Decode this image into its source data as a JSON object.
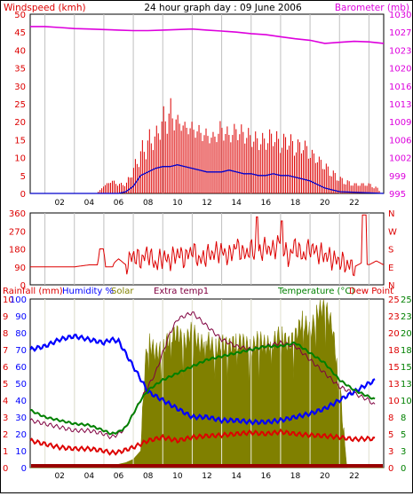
{
  "header": {
    "left_label": "Windspeed (kmh)",
    "title": "24 hour graph day : 09 June 2006",
    "right_label": "Barometer (mb)"
  },
  "middle_panel": {
    "direction_labels": [
      "N",
      "W",
      "S",
      "E",
      "N"
    ]
  },
  "bottom_header": {
    "rainfall": "Rainfall (mm)",
    "humidity": "Humidity %",
    "solar": "Solar",
    "extra": "Extra temp1",
    "temperature": "Temperature (°C)",
    "dewpoint": "Dew Point"
  },
  "colors": {
    "wind": "#dd0000",
    "wind_avg": "#0000cc",
    "barometer": "#dd00dd",
    "direction": "#dd0000",
    "solar": "#808000",
    "humidity": "#0000ff",
    "temperature": "#008000",
    "dewpoint": "#dd0000",
    "extra_temp": "#800040",
    "rainfall": "#990000",
    "grid": "#c0c0c0"
  },
  "chart_data": [
    {
      "type": "line",
      "title": "24 hour graph day : 09 June 2006",
      "x_ticks": [
        "02",
        "04",
        "06",
        "08",
        "10",
        "12",
        "14",
        "16",
        "18",
        "20",
        "22"
      ],
      "xlim": [
        0,
        24
      ],
      "left_axis": {
        "label": "Windspeed (kmh)",
        "ylim": [
          0,
          50
        ],
        "ticks": [
          0,
          5,
          10,
          15,
          20,
          25,
          30,
          35,
          40,
          45,
          50
        ]
      },
      "right_axis": {
        "label": "Barometer (mb)",
        "ylim": [
          995,
          1030
        ],
        "ticks": [
          995,
          999,
          1002,
          1006,
          1009,
          1013,
          1016,
          1020,
          1023,
          1027,
          1030
        ]
      },
      "series": [
        {
          "name": "Windspeed (kmh)",
          "axis": "left",
          "style": "gust-bars",
          "x": [
            0,
            4.5,
            5.0,
            5.5,
            6.0,
            6.5,
            7.0,
            7.5,
            8.0,
            8.5,
            9.0,
            9.5,
            10.0,
            10.5,
            11.0,
            11.5,
            12.0,
            12.5,
            13.0,
            13.5,
            14.0,
            14.5,
            15.0,
            15.5,
            16.0,
            16.5,
            17.0,
            17.5,
            18.0,
            18.5,
            19.0,
            19.5,
            20.0,
            20.5,
            21.0,
            21.5,
            22.0,
            22.5,
            23.0,
            23.5,
            24
          ],
          "y": [
            0,
            0,
            2,
            3,
            2,
            2,
            5,
            8,
            10,
            13,
            16,
            17,
            18,
            17,
            16,
            15,
            14,
            14,
            15,
            14,
            15,
            14,
            13,
            12,
            12,
            13,
            11,
            12,
            10,
            11,
            9,
            8,
            6,
            4,
            3,
            2,
            2,
            2,
            2,
            1,
            0
          ],
          "gust_max": [
            0,
            0,
            2,
            4,
            3,
            3,
            8,
            14,
            18,
            18,
            24,
            27,
            22,
            20,
            20,
            19,
            18,
            17,
            21,
            18,
            20,
            19,
            18,
            17,
            17,
            19,
            16,
            18,
            15,
            16,
            13,
            11,
            9,
            7,
            5,
            4,
            3,
            3,
            3,
            2,
            0
          ]
        },
        {
          "name": "Average windspeed",
          "axis": "left",
          "x": [
            0,
            5.5,
            6.0,
            6.5,
            7.0,
            7.5,
            8.0,
            8.5,
            9.0,
            9.5,
            10.0,
            10.5,
            11.0,
            11.5,
            12.0,
            12.5,
            13.0,
            13.5,
            14.0,
            14.5,
            15.0,
            15.5,
            16.0,
            16.5,
            17.0,
            17.5,
            18.0,
            18.5,
            19.0,
            19.5,
            20.0,
            20.5,
            21.0,
            24
          ],
          "y": [
            0,
            0,
            0,
            0.5,
            2,
            5,
            6,
            7,
            7.5,
            7.5,
            8,
            7.5,
            7,
            6.5,
            6,
            6,
            6,
            6.5,
            6,
            5.5,
            5.5,
            5,
            5,
            5.5,
            5,
            5,
            4.5,
            4,
            3.5,
            2.5,
            1.5,
            1,
            0.5,
            0
          ]
        },
        {
          "name": "Barometer (mb)",
          "axis": "right",
          "x": [
            0,
            1,
            2,
            3,
            4,
            5,
            6,
            7,
            8,
            9,
            10,
            11,
            12,
            13,
            14,
            15,
            16,
            17,
            18,
            19,
            20,
            21,
            22,
            23,
            24
          ],
          "y": [
            1027.6,
            1027.6,
            1027.4,
            1027.2,
            1027.1,
            1027.0,
            1026.9,
            1026.8,
            1026.8,
            1026.9,
            1027.0,
            1027.1,
            1026.9,
            1026.7,
            1026.5,
            1026.2,
            1026.0,
            1025.6,
            1025.2,
            1024.9,
            1024.3,
            1024.5,
            1024.7,
            1024.6,
            1024.3
          ]
        }
      ]
    },
    {
      "type": "line",
      "x_ticks": [],
      "xlim": [
        0,
        24
      ],
      "left_axis": {
        "ylim": [
          0,
          360
        ],
        "ticks": [
          0,
          90,
          180,
          270,
          360
        ]
      },
      "right_axis": {
        "ticks": [
          "N",
          "W",
          "S",
          "E",
          "N"
        ]
      },
      "series": [
        {
          "name": "Wind direction",
          "x": [
            0,
            2,
            3,
            4,
            4.6,
            4.7,
            5.0,
            5.1,
            5.6,
            5.7,
            6.0,
            6.5,
            7.0,
            7.5,
            8.0,
            8.5,
            9.0,
            9.5,
            10.0,
            10.5,
            11.0,
            11.5,
            12.0,
            12.5,
            13.0,
            13.5,
            14.0,
            14.5,
            15.0,
            15.5,
            16.0,
            16.5,
            17.0,
            17.5,
            18.0,
            18.5,
            19.0,
            19.5,
            20.0,
            20.5,
            21.0,
            21.5,
            22.0,
            22.5,
            23.0,
            23.5,
            24
          ],
          "y": [
            90,
            90,
            90,
            100,
            100,
            180,
            180,
            90,
            90,
            110,
            130,
            100,
            150,
            120,
            160,
            100,
            140,
            120,
            160,
            130,
            180,
            120,
            150,
            160,
            170,
            140,
            200,
            150,
            180,
            160,
            190,
            170,
            230,
            130,
            200,
            140,
            190,
            160,
            150,
            130,
            120,
            100,
            90,
            110,
            100,
            120,
            100
          ]
        }
      ]
    },
    {
      "type": "line",
      "x_ticks": [
        "02",
        "04",
        "06",
        "08",
        "10",
        "12",
        "14",
        "16",
        "18",
        "20",
        "22"
      ],
      "xlim": [
        0,
        24
      ],
      "left_axes": [
        {
          "label": "Rainfall (mm)",
          "ylim": [
            0,
            10
          ],
          "ticks": [
            0,
            1,
            2,
            3,
            4,
            5,
            6,
            7,
            8,
            9,
            10
          ]
        },
        {
          "label": "Humidity %",
          "ylim": [
            0,
            100
          ],
          "ticks": [
            0,
            10,
            20,
            30,
            40,
            50,
            60,
            70,
            80,
            90,
            100
          ]
        }
      ],
      "right_axes": [
        {
          "label": "Temperature (°C)",
          "ylim": [
            0,
            25
          ],
          "ticks": [
            0,
            3,
            5,
            8,
            10,
            13,
            15,
            18,
            20,
            23,
            25
          ]
        },
        {
          "label": "Dew Point",
          "ylim": [
            0,
            25
          ],
          "ticks": [
            0,
            3,
            5,
            8,
            10,
            13,
            15,
            18,
            20,
            23,
            25
          ]
        }
      ],
      "series": [
        {
          "name": "Solar",
          "style": "area",
          "axis": "humidity",
          "x": [
            0,
            5.5,
            6.0,
            6.5,
            7.0,
            7.5,
            7.8,
            8.0,
            8.5,
            9.0,
            9.5,
            10.0,
            10.5,
            11.0,
            11.5,
            12.0,
            12.5,
            13.0,
            13.5,
            14.0,
            14.5,
            15.0,
            15.5,
            16.0,
            16.5,
            17.0,
            17.5,
            18.0,
            18.5,
            19.0,
            19.5,
            20.0,
            20.5,
            21.0,
            21.5,
            24
          ],
          "y": [
            0,
            0,
            2,
            3,
            5,
            10,
            60,
            75,
            68,
            70,
            78,
            80,
            74,
            82,
            72,
            76,
            70,
            74,
            72,
            75,
            74,
            70,
            76,
            72,
            74,
            80,
            73,
            78,
            88,
            80,
            92,
            96,
            84,
            50,
            0,
            0
          ]
        },
        {
          "name": "Humidity %",
          "axis": "humidity",
          "x": [
            0,
            1,
            2,
            3,
            4,
            5,
            5.5,
            6,
            7,
            8,
            9,
            10,
            11,
            12,
            13,
            14,
            15,
            16,
            17,
            18,
            19,
            20,
            21,
            22,
            23,
            23.5
          ],
          "y": [
            70,
            72,
            76,
            78,
            76,
            74,
            76,
            75,
            60,
            45,
            40,
            35,
            30,
            30,
            28,
            28,
            27,
            27,
            28,
            30,
            32,
            35,
            40,
            45,
            50,
            52
          ]
        },
        {
          "name": "Temperature (°C)",
          "axis": "temperature",
          "x": [
            0,
            1,
            2,
            3,
            4,
            5,
            5.5,
            6,
            6.5,
            7,
            7.5,
            8,
            9,
            10,
            11,
            12,
            13,
            14,
            15,
            16,
            17,
            18,
            19,
            20,
            21,
            22,
            23,
            23.5
          ],
          "y": [
            8.5,
            7.5,
            7,
            6.5,
            6.3,
            5.5,
            5,
            5.3,
            6,
            8,
            10,
            11.5,
            13,
            14,
            15,
            16,
            16.5,
            17,
            17.5,
            18,
            18,
            18.5,
            17,
            15.5,
            13,
            11.5,
            10.5,
            10
          ]
        },
        {
          "name": "Dew Point",
          "axis": "temperature",
          "x": [
            0,
            1,
            2,
            3,
            4,
            5,
            5.5,
            6,
            7,
            8,
            9,
            10,
            11,
            12,
            13,
            14,
            15,
            16,
            17,
            18,
            19,
            20,
            21,
            22,
            23,
            23.5
          ],
          "y": [
            4,
            3.5,
            3,
            2.8,
            2.8,
            2.5,
            2.2,
            2.3,
            3,
            4,
            4.5,
            4,
            4.5,
            4.7,
            4.8,
            5,
            5.2,
            5,
            5.3,
            5,
            4.8,
            4.7,
            4.5,
            4.2,
            4.3,
            4.2
          ]
        },
        {
          "name": "Extra temp1",
          "axis": "temperature",
          "x": [
            0,
            1,
            2,
            3,
            4,
            5,
            5.5,
            6,
            6.5,
            7,
            7.5,
            8,
            8.5,
            9,
            9.5,
            10,
            10.5,
            11,
            11.5,
            12,
            12.5,
            13,
            14,
            15,
            16,
            17,
            18,
            19,
            20,
            21,
            22,
            23,
            23.5
          ],
          "y": [
            7,
            6.5,
            6,
            5.5,
            5.5,
            5,
            4.5,
            5,
            6,
            8,
            10,
            12,
            14,
            17,
            20,
            22,
            22.5,
            23,
            22,
            21,
            20,
            19,
            18,
            17.5,
            18,
            18.5,
            18,
            16,
            14,
            12,
            11,
            10,
            9
          ]
        },
        {
          "name": "Rainfall (mm)",
          "axis": "rainfall",
          "x": [
            0,
            24
          ],
          "y": [
            0,
            0
          ]
        }
      ]
    }
  ]
}
